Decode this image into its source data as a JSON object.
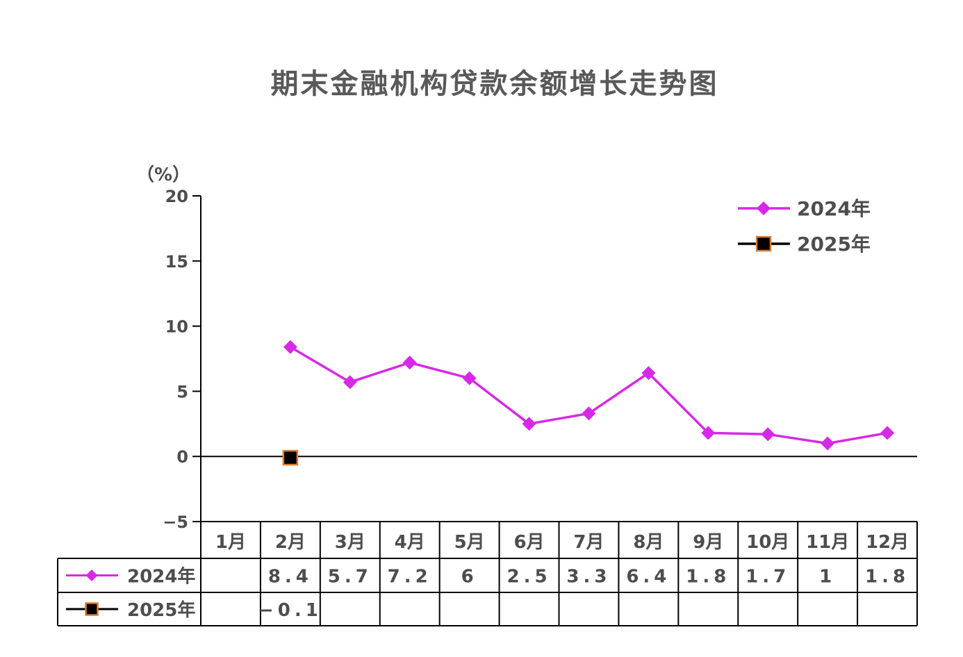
{
  "chart_data": {
    "type": "line",
    "title": "期末金融机构贷款余额增长走势图",
    "ylabel": "（%）",
    "ylim": [
      -5,
      20
    ],
    "yticks": [
      20,
      15,
      10,
      5,
      0,
      -5
    ],
    "grid": false,
    "legend_position": "top-right",
    "categories": [
      "1月",
      "2月",
      "3月",
      "4月",
      "5月",
      "6月",
      "7月",
      "8月",
      "9月",
      "10月",
      "11月",
      "12月"
    ],
    "series": [
      {
        "name": "2024年",
        "color": "#d629e6",
        "marker": "diamond",
        "values": [
          null,
          8.4,
          5.7,
          7.2,
          6,
          2.5,
          3.3,
          6.4,
          1.8,
          1.7,
          1,
          1.8
        ],
        "labels": [
          "",
          "8.4",
          "5.7",
          "7.2",
          "6",
          "2.5",
          "3.3",
          "6.4",
          "1.8",
          "1.7",
          "1",
          "1.8"
        ]
      },
      {
        "name": "2025年",
        "color": "#000000",
        "marker_edge": "#e07b30",
        "marker": "square",
        "values": [
          null,
          -0.1,
          null,
          null,
          null,
          null,
          null,
          null,
          null,
          null,
          null,
          null
        ],
        "labels": [
          "",
          "-0.1",
          "",
          "",
          "",
          "",
          "",
          "",
          "",
          "",
          "",
          ""
        ]
      }
    ]
  }
}
